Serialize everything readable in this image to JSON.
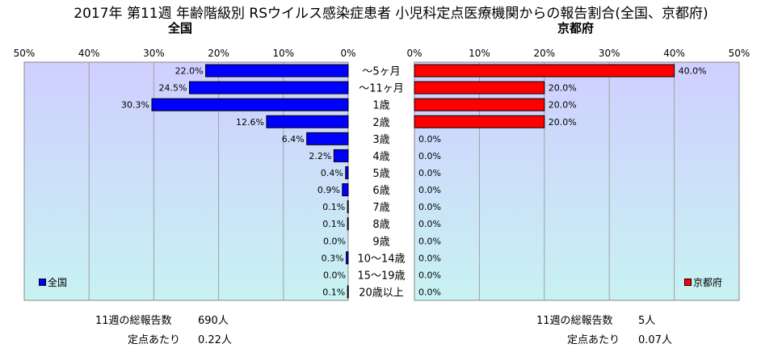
{
  "title": "2017年 第11週 年齢階級別 RSウイルス感染症患者 小児科定点医療機関からの報告割合(全国、京都府)",
  "chart_data": [
    {
      "type": "bar",
      "orientation": "horizontal",
      "direction": "right-to-left",
      "title": "全国",
      "categories": [
        "～5ヶ月",
        "～11ヶ月",
        "1歳",
        "2歳",
        "3歳",
        "4歳",
        "5歳",
        "6歳",
        "7歳",
        "8歳",
        "9歳",
        "10～14歳",
        "15～19歳",
        "20歳以上"
      ],
      "series": [
        {
          "name": "全国",
          "values": [
            22.0,
            24.5,
            30.3,
            12.6,
            6.4,
            2.2,
            0.4,
            0.9,
            0.1,
            0.1,
            0.0,
            0.3,
            0.0,
            0.1
          ],
          "color": "#0000ff"
        }
      ],
      "value_labels": [
        "22.0%",
        "24.5%",
        "30.3%",
        "12.6%",
        "6.4%",
        "2.2%",
        "0.4%",
        "0.9%",
        "0.1%",
        "0.1%",
        "0.0%",
        "0.3%",
        "0.0%",
        "0.1%"
      ],
      "xlim": [
        0,
        50
      ],
      "ticks": [
        "50%",
        "40%",
        "30%",
        "20%",
        "10%",
        "0%"
      ],
      "legend": "bottom-left",
      "grid": true
    },
    {
      "type": "bar",
      "orientation": "horizontal",
      "direction": "left-to-right",
      "title": "京都府",
      "categories": [
        "～5ヶ月",
        "～11ヶ月",
        "1歳",
        "2歳",
        "3歳",
        "4歳",
        "5歳",
        "6歳",
        "7歳",
        "8歳",
        "9歳",
        "10～14歳",
        "15～19歳",
        "20歳以上"
      ],
      "series": [
        {
          "name": "京都府",
          "values": [
            40.0,
            20.0,
            20.0,
            20.0,
            0.0,
            0.0,
            0.0,
            0.0,
            0.0,
            0.0,
            0.0,
            0.0,
            0.0,
            0.0
          ],
          "color": "#ff0000"
        }
      ],
      "value_labels": [
        "40.0%",
        "20.0%",
        "20.0%",
        "20.0%",
        "0.0%",
        "0.0%",
        "0.0%",
        "0.0%",
        "0.0%",
        "0.0%",
        "0.0%",
        "0.0%",
        "0.0%",
        "0.0%"
      ],
      "xlim": [
        0,
        50
      ],
      "ticks": [
        "0%",
        "10%",
        "20%",
        "30%",
        "40%",
        "50%"
      ],
      "legend": "bottom-right",
      "grid": true
    }
  ],
  "footer": {
    "national_total_label": "11週の総報告数",
    "national_total_value": "690人",
    "national_per_label": "定点あたり",
    "national_per_value": "0.22人",
    "kyoto_total_label": "11週の総報告数",
    "kyoto_total_value": "5人",
    "kyoto_per_label": "定点あたり",
    "kyoto_per_value": "0.07人"
  },
  "colors": {
    "plot_bg_top": "#cfcfff",
    "plot_bg_bottom": "#c8f2f2",
    "national": "#0000ff",
    "kyoto": "#ff0000"
  }
}
